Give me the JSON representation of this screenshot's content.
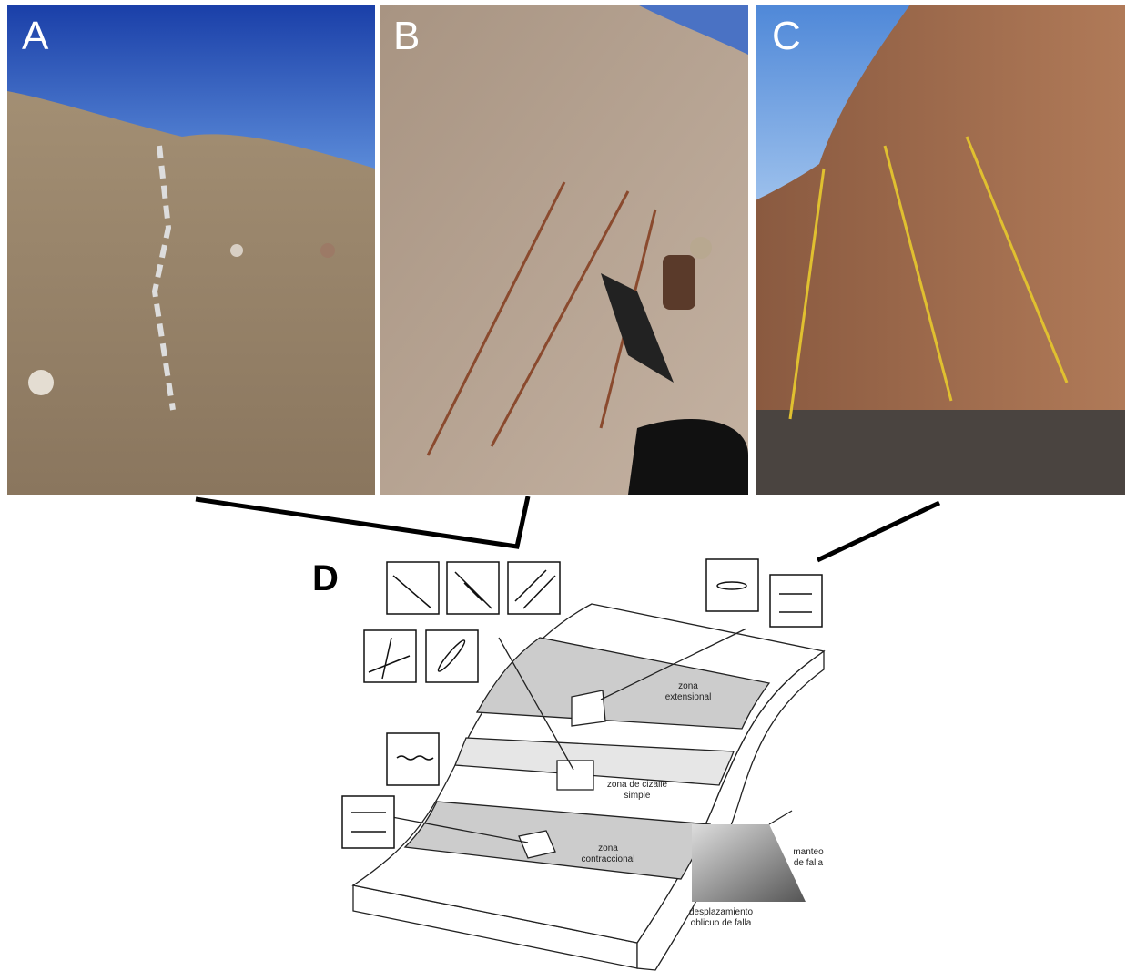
{
  "panels": {
    "a": "A",
    "b": "B",
    "c": "C",
    "d": "D"
  },
  "diagram": {
    "labels": [
      {
        "lines": [
          "zona",
          "extensional"
        ]
      },
      {
        "lines": [
          "zona de cizalle",
          "simple"
        ]
      },
      {
        "lines": [
          "zona",
          "contraccional"
        ]
      },
      {
        "lines": [
          "manteo",
          "de falla"
        ]
      },
      {
        "lines": [
          "desplazamiento",
          "oblicuo de falla"
        ]
      }
    ]
  }
}
